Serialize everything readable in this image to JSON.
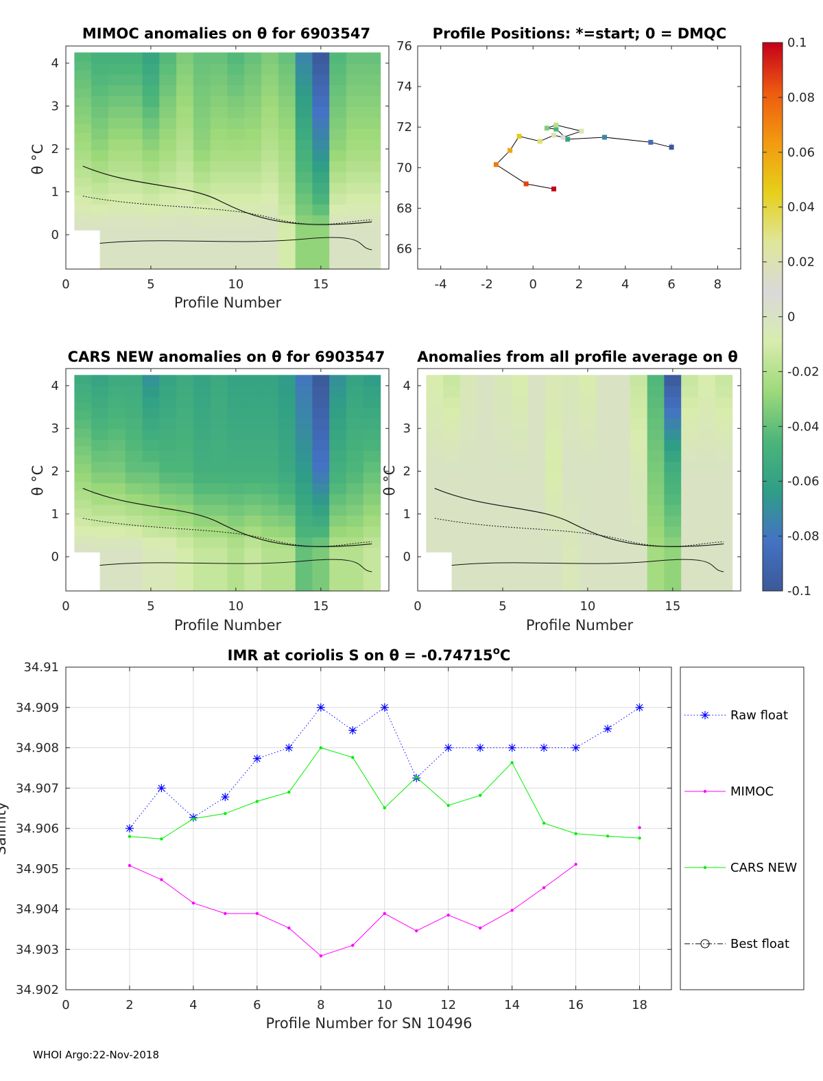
{
  "footer": "WHOI Argo:22-Nov-2018",
  "colorbar": {
    "ticks": [
      "0.1",
      "0.08",
      "0.06",
      "0.04",
      "0.02",
      "0",
      "-0.02",
      "-0.04",
      "-0.06",
      "-0.08",
      "-0.1"
    ],
    "range": [
      -0.1,
      0.1
    ],
    "stops": [
      "#3b5998",
      "#4472c4",
      "#2f9e86",
      "#4cb57a",
      "#9ed97a",
      "#d8ecae",
      "#d9d9d9",
      "#dfe69a",
      "#e6cf1a",
      "#f29a10",
      "#ee5a10",
      "#c4001a"
    ]
  },
  "chart_data": [
    {
      "id": "mimoc",
      "type": "heatmap",
      "title": "MIMOC anomalies on θ  for 6903547",
      "xlabel": "Profile Number",
      "ylabel": "θ °C",
      "xlim": [
        0,
        19
      ],
      "ylim": [
        -0.8,
        4.4
      ],
      "xticks": [
        "0",
        "5",
        "10",
        "15"
      ],
      "yticks": [
        "0",
        "1",
        "2",
        "3",
        "4"
      ],
      "columns": [
        {
          "x": 1,
          "top": -0.045,
          "mid": -0.025,
          "bot": 0.0
        },
        {
          "x": 2,
          "top": -0.05,
          "mid": -0.03,
          "bot": 0.0
        },
        {
          "x": 3,
          "top": -0.05,
          "mid": -0.025,
          "bot": 0.0
        },
        {
          "x": 4,
          "top": -0.05,
          "mid": -0.025,
          "bot": 0.0
        },
        {
          "x": 5,
          "top": -0.06,
          "mid": -0.03,
          "bot": 0.0
        },
        {
          "x": 6,
          "top": -0.045,
          "mid": -0.025,
          "bot": 0.0
        },
        {
          "x": 7,
          "top": -0.035,
          "mid": -0.02,
          "bot": 0.0
        },
        {
          "x": 8,
          "top": -0.04,
          "mid": -0.03,
          "bot": 0.0
        },
        {
          "x": 9,
          "top": -0.04,
          "mid": -0.025,
          "bot": 0.0
        },
        {
          "x": 10,
          "top": -0.045,
          "mid": -0.025,
          "bot": 0.0
        },
        {
          "x": 11,
          "top": -0.04,
          "mid": -0.025,
          "bot": 0.0
        },
        {
          "x": 12,
          "top": -0.035,
          "mid": -0.02,
          "bot": 0.0
        },
        {
          "x": 13,
          "top": -0.04,
          "mid": -0.025,
          "bot": -0.01
        },
        {
          "x": 14,
          "top": -0.075,
          "mid": -0.05,
          "bot": -0.03
        },
        {
          "x": 15,
          "top": -0.1,
          "mid": -0.07,
          "bot": -0.03
        },
        {
          "x": 16,
          "top": -0.045,
          "mid": -0.03,
          "bot": 0.0
        },
        {
          "x": 17,
          "top": -0.04,
          "mid": -0.025,
          "bot": 0.0
        },
        {
          "x": 18,
          "top": -0.04,
          "mid": -0.025,
          "bot": 0.0
        }
      ]
    },
    {
      "id": "positions",
      "type": "line",
      "title": "Profile Positions: *=start; 0 = DMQC",
      "xlim": [
        -5,
        9
      ],
      "ylim": [
        65,
        76
      ],
      "xticks": [
        "-4",
        "-2",
        "0",
        "2",
        "4",
        "6",
        "8"
      ],
      "yticks": [
        "66",
        "68",
        "70",
        "72",
        "74",
        "76"
      ],
      "points": [
        {
          "lon": 6.0,
          "lat": 71.0
        },
        {
          "lon": 5.1,
          "lat": 71.25
        },
        {
          "lon": 3.1,
          "lat": 71.5
        },
        {
          "lon": 1.5,
          "lat": 71.4
        },
        {
          "lon": 1.0,
          "lat": 71.9
        },
        {
          "lon": 0.6,
          "lat": 71.95
        },
        {
          "lon": 1.0,
          "lat": 72.1
        },
        {
          "lon": 2.1,
          "lat": 71.8
        },
        {
          "lon": 1.3,
          "lat": 71.5
        },
        {
          "lon": 0.9,
          "lat": 71.6
        },
        {
          "lon": 0.3,
          "lat": 71.3
        },
        {
          "lon": -0.6,
          "lat": 71.55
        },
        {
          "lon": -1.0,
          "lat": 70.85
        },
        {
          "lon": -1.6,
          "lat": 70.15
        },
        {
          "lon": -0.3,
          "lat": 69.2
        },
        {
          "lon": 0.9,
          "lat": 68.95
        }
      ]
    },
    {
      "id": "cars",
      "type": "heatmap",
      "title": "CARS NEW anomalies on θ for 6903547",
      "xlabel": "Profile Number",
      "ylabel": "θ °C",
      "xlim": [
        0,
        19
      ],
      "ylim": [
        -0.8,
        4.4
      ],
      "xticks": [
        "0",
        "5",
        "10",
        "15"
      ],
      "yticks": [
        "0",
        "1",
        "2",
        "3",
        "4"
      ],
      "columns": [
        {
          "x": 1,
          "top": -0.055,
          "mid": -0.03,
          "bot": 0.0
        },
        {
          "x": 2,
          "top": -0.06,
          "mid": -0.035,
          "bot": 0.0
        },
        {
          "x": 3,
          "top": -0.055,
          "mid": -0.035,
          "bot": 0.0
        },
        {
          "x": 4,
          "top": -0.055,
          "mid": -0.04,
          "bot": 0.0
        },
        {
          "x": 5,
          "top": -0.07,
          "mid": -0.04,
          "bot": -0.005
        },
        {
          "x": 6,
          "top": -0.06,
          "mid": -0.045,
          "bot": -0.005
        },
        {
          "x": 7,
          "top": -0.055,
          "mid": -0.045,
          "bot": -0.01
        },
        {
          "x": 8,
          "top": -0.06,
          "mid": -0.05,
          "bot": -0.015
        },
        {
          "x": 9,
          "top": -0.055,
          "mid": -0.05,
          "bot": -0.015
        },
        {
          "x": 10,
          "top": -0.06,
          "mid": -0.05,
          "bot": -0.02
        },
        {
          "x": 11,
          "top": -0.06,
          "mid": -0.05,
          "bot": -0.015
        },
        {
          "x": 12,
          "top": -0.06,
          "mid": -0.05,
          "bot": -0.02
        },
        {
          "x": 13,
          "top": -0.065,
          "mid": -0.055,
          "bot": -0.02
        },
        {
          "x": 14,
          "top": -0.08,
          "mid": -0.065,
          "bot": -0.04
        },
        {
          "x": 15,
          "top": -0.1,
          "mid": -0.08,
          "bot": -0.035
        },
        {
          "x": 16,
          "top": -0.07,
          "mid": -0.05,
          "bot": -0.02
        },
        {
          "x": 17,
          "top": -0.06,
          "mid": -0.045,
          "bot": -0.02
        },
        {
          "x": 18,
          "top": -0.065,
          "mid": -0.04,
          "bot": -0.015
        }
      ]
    },
    {
      "id": "avg",
      "type": "heatmap",
      "title": "Anomalies from all profile average on θ",
      "xlabel": "Profile Number",
      "ylabel": "θ °C",
      "xlim": [
        0,
        19
      ],
      "ylim": [
        -0.8,
        4.4
      ],
      "xticks": [
        "0",
        "5",
        "10",
        "15"
      ],
      "yticks": [
        "0",
        "1",
        "2",
        "3",
        "4"
      ],
      "columns": [
        {
          "x": 1,
          "top": -0.01,
          "mid": 0.0,
          "bot": 0.0
        },
        {
          "x": 2,
          "top": -0.015,
          "mid": 0.0,
          "bot": 0.0
        },
        {
          "x": 3,
          "top": -0.005,
          "mid": 0.0,
          "bot": 0.0
        },
        {
          "x": 4,
          "top": 0.0,
          "mid": 0.0,
          "bot": 0.0
        },
        {
          "x": 5,
          "top": -0.005,
          "mid": 0.0,
          "bot": 0.0
        },
        {
          "x": 6,
          "top": -0.01,
          "mid": 0.0,
          "bot": 0.0
        },
        {
          "x": 7,
          "top": 0.0,
          "mid": 0.0,
          "bot": 0.0
        },
        {
          "x": 8,
          "top": -0.005,
          "mid": -0.01,
          "bot": 0.0
        },
        {
          "x": 9,
          "top": -0.005,
          "mid": 0.0,
          "bot": -0.005
        },
        {
          "x": 10,
          "top": -0.01,
          "mid": 0.0,
          "bot": 0.0
        },
        {
          "x": 11,
          "top": 0.0,
          "mid": 0.0,
          "bot": 0.0
        },
        {
          "x": 12,
          "top": 0.0,
          "mid": 0.0,
          "bot": 0.0
        },
        {
          "x": 13,
          "top": -0.015,
          "mid": -0.005,
          "bot": 0.0
        },
        {
          "x": 14,
          "top": -0.045,
          "mid": -0.035,
          "bot": -0.025
        },
        {
          "x": 15,
          "top": -0.1,
          "mid": -0.05,
          "bot": -0.03
        },
        {
          "x": 16,
          "top": -0.015,
          "mid": 0.0,
          "bot": 0.0
        },
        {
          "x": 17,
          "top": -0.01,
          "mid": 0.0,
          "bot": 0.0
        },
        {
          "x": 18,
          "top": -0.015,
          "mid": 0.0,
          "bot": 0.0
        }
      ]
    },
    {
      "id": "imr",
      "type": "line",
      "title_prefix": "IMR at coriolis S on θ = -0.74715",
      "title_sup": "o",
      "title_suffix": "C",
      "xlabel": "Profile Number for SN 10496",
      "ylabel": "Salinity",
      "xlim": [
        0,
        19
      ],
      "ylim": [
        34.902,
        34.91
      ],
      "xticks": [
        "0",
        "2",
        "4",
        "6",
        "8",
        "10",
        "12",
        "14",
        "16",
        "18"
      ],
      "yticks": [
        "34.902",
        "34.903",
        "34.904",
        "34.905",
        "34.906",
        "34.907",
        "34.908",
        "34.909",
        "34.91"
      ],
      "series": [
        {
          "name": "Raw float",
          "color": "#0000ff",
          "style": "dotted",
          "marker": "star",
          "x": [
            2,
            3,
            4,
            5,
            6,
            7,
            8,
            9,
            10,
            11,
            12,
            13,
            14,
            15,
            16,
            17,
            18
          ],
          "y": [
            34.906,
            34.907,
            34.90627,
            34.90678,
            34.90773,
            34.908,
            34.909,
            34.90843,
            34.909,
            34.90725,
            34.908,
            34.908,
            34.908,
            34.908,
            34.908,
            34.90847,
            34.909
          ]
        },
        {
          "name": "MIMOC",
          "color": "#ff00ff",
          "style": "solid",
          "marker": "dot",
          "x": [
            2,
            3,
            4,
            5,
            6,
            7,
            8,
            9,
            10,
            11,
            12,
            13,
            14,
            15,
            16,
            18
          ],
          "y": [
            34.90508,
            34.90473,
            34.90415,
            34.90389,
            34.90389,
            34.90353,
            34.90284,
            34.9031,
            34.90389,
            34.90346,
            34.90385,
            34.90353,
            34.90397,
            34.90453,
            34.90511,
            34.90602
          ],
          "break_before_index": 15
        },
        {
          "name": "CARS NEW",
          "color": "#00ee00",
          "style": "solid",
          "marker": "dot",
          "x": [
            2,
            3,
            4,
            5,
            6,
            7,
            8,
            9,
            10,
            11,
            12,
            13,
            14,
            15,
            16,
            17,
            18
          ],
          "y": [
            34.9058,
            34.90574,
            34.90624,
            34.90637,
            34.90667,
            34.9069,
            34.908,
            34.90776,
            34.90651,
            34.90727,
            34.90657,
            34.90682,
            34.90763,
            34.90613,
            34.90587,
            34.90581,
            34.90576
          ]
        },
        {
          "name": "Best float",
          "color": "#000000",
          "style": "dashdot",
          "marker": "circle",
          "x": [],
          "y": []
        }
      ]
    }
  ]
}
